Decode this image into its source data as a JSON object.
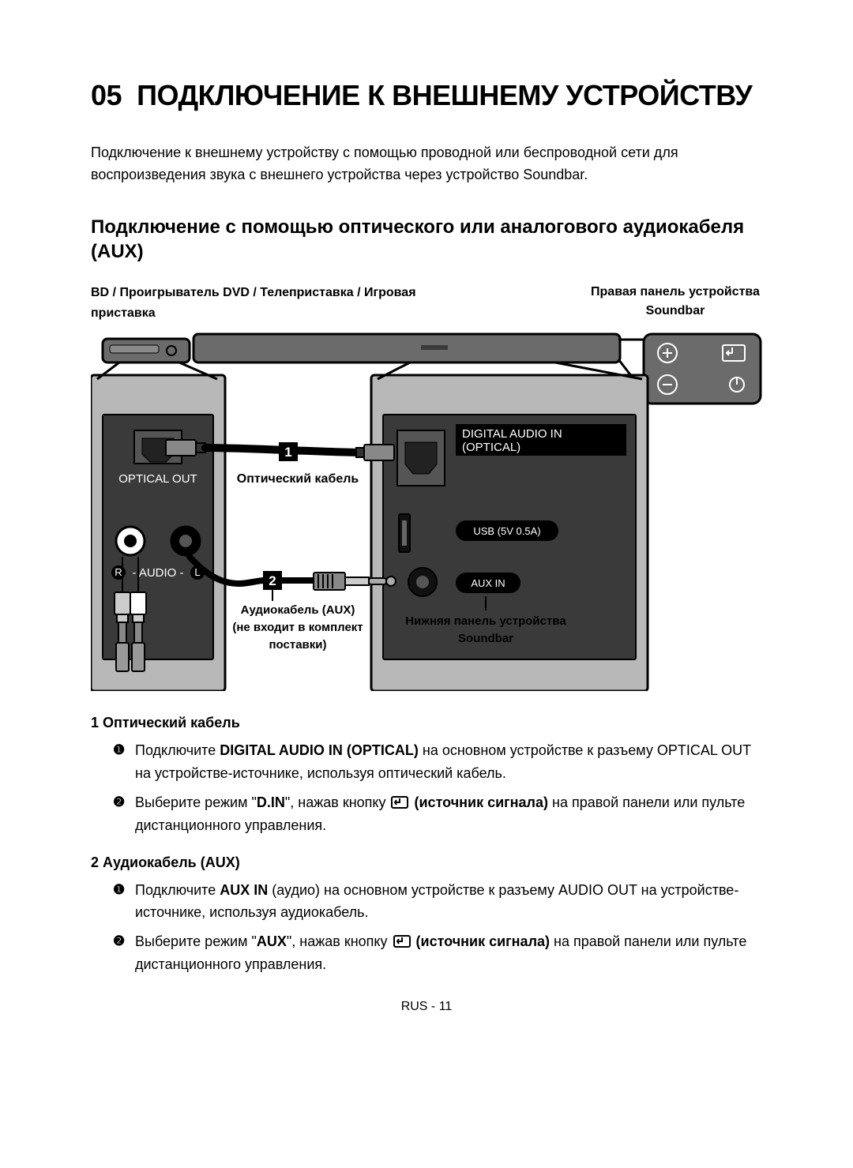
{
  "chapter": {
    "number": "05",
    "title": "ПОДКЛЮЧЕНИЕ К ВНЕШНЕМУ УСТРОЙСТВУ"
  },
  "intro": "Подключение к внешнему устройству с помощью проводной или беспроводной сети для воспроизведения звука с внешнего устройства через устройство Soundbar.",
  "section_title": "Подключение с помощью оптического или аналогового аудиокабеля (AUX)",
  "labels": {
    "top_left": "BD / Проигрыватель DVD / Телеприставка / Игровая приставка",
    "top_right": "Правая панель устройства Soundbar",
    "optical_out": "OPTICAL OUT",
    "optical_cable": "Оптический кабель",
    "digital_audio_in": "DIGITAL AUDIO IN",
    "optical": "(OPTICAL)",
    "usb": "USB (5V 0.5A)",
    "aux_in": "AUX IN",
    "audio_rl": "AUDIO",
    "r": "R",
    "l": "L",
    "aux_cable_1": "Аудиокабель (AUX)",
    "aux_cable_2": "(не входит в комплект",
    "aux_cable_3": "поставки)",
    "bottom_panel_1": "Нижняя панель устройства",
    "bottom_panel_2": "Soundbar",
    "badge1": "1",
    "badge2": "2"
  },
  "steps": [
    {
      "num": "1",
      "title": "Оптический кабель",
      "items": [
        {
          "n": "❶",
          "pre": "Подключите ",
          "bold": "DIGITAL AUDIO IN (OPTICAL)",
          "post": " на основном устройстве к разъему OPTICAL OUT на устройстве-источнике, используя оптический кабель."
        },
        {
          "n": "❷",
          "pre": "Выберите режим \"",
          "bold": "D.IN",
          "mid": "\", нажав кнопку ",
          "hasIcon": true,
          "bold2": "(источник сигнала)",
          "post": " на правой панели или пульте дистанционного управления."
        }
      ]
    },
    {
      "num": "2",
      "title": "Аудиокабель (AUX)",
      "items": [
        {
          "n": "❶",
          "pre": "Подключите ",
          "bold": "AUX IN",
          "post": " (аудио) на основном устройстве к разъему AUDIO OUT на устройстве-источнике, используя аудиокабель."
        },
        {
          "n": "❷",
          "pre": "Выберите режим \"",
          "bold": "AUX",
          "mid": "\", нажав кнопку ",
          "hasIcon": true,
          "bold2": "(источник сигнала)",
          "post": " на правой панели или пульте дистанционного управления."
        }
      ]
    }
  ],
  "footer": "RUS - 11",
  "colors": {
    "dark": "#3a3a3a",
    "mid": "#6b6b6b",
    "light": "#b8b8b8",
    "stroke": "#000",
    "white": "#fff"
  }
}
